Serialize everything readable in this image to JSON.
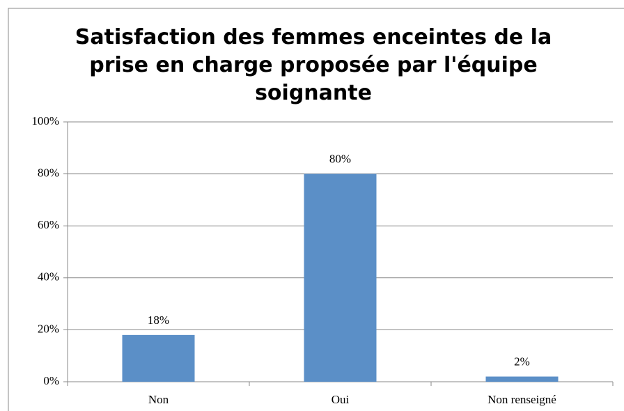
{
  "chart_data": {
    "type": "bar",
    "title": "Satisfaction des femmes enceintes de la prise en charge proposée par l'équipe soignante",
    "categories": [
      "Non",
      "Oui",
      "Non renseigné"
    ],
    "values": [
      18,
      80,
      2
    ],
    "value_labels": [
      "18%",
      "80%",
      "2%"
    ],
    "color": "#5b8fc7",
    "ylim": [
      0,
      100
    ],
    "yticks": [
      {
        "value": 0,
        "label": "0%"
      },
      {
        "value": 20,
        "label": "20%"
      },
      {
        "value": 40,
        "label": "40%"
      },
      {
        "value": 60,
        "label": "60%"
      },
      {
        "value": 80,
        "label": "80%"
      },
      {
        "value": 100,
        "label": "100%"
      }
    ],
    "grid": true
  }
}
